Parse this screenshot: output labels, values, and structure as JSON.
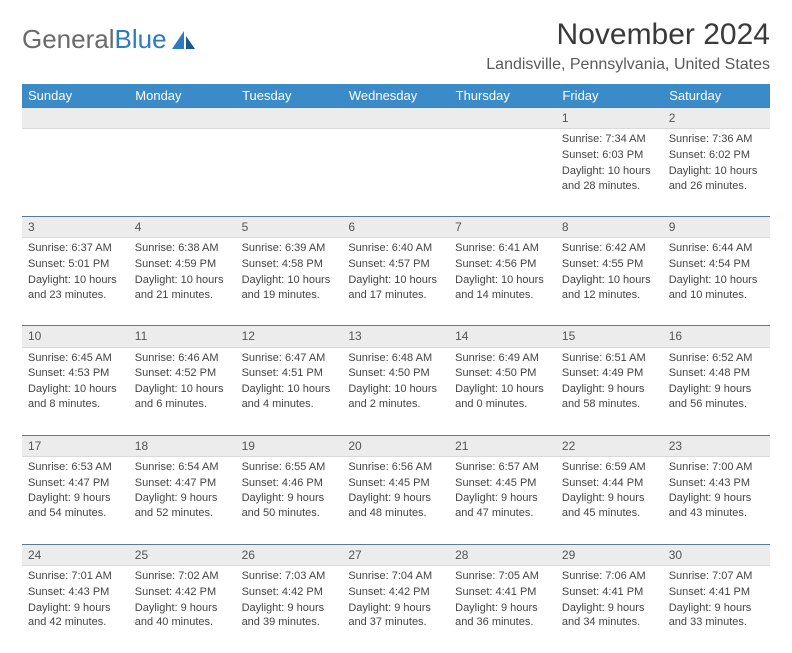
{
  "brand": {
    "part1": "General",
    "part2": "Blue"
  },
  "title": "November 2024",
  "location": "Landisville, Pennsylvania, United States",
  "colors": {
    "header_bg": "#3b8bc8",
    "header_text": "#ffffff",
    "daynum_bg": "#ececec",
    "text": "#444444",
    "rule": "#5a7a96"
  },
  "dayHeaders": [
    "Sunday",
    "Monday",
    "Tuesday",
    "Wednesday",
    "Thursday",
    "Friday",
    "Saturday"
  ],
  "weeks": [
    [
      null,
      null,
      null,
      null,
      null,
      {
        "n": "1",
        "sunrise": "Sunrise: 7:34 AM",
        "sunset": "Sunset: 6:03 PM",
        "daylight": "Daylight: 10 hours and 28 minutes."
      },
      {
        "n": "2",
        "sunrise": "Sunrise: 7:36 AM",
        "sunset": "Sunset: 6:02 PM",
        "daylight": "Daylight: 10 hours and 26 minutes."
      }
    ],
    [
      {
        "n": "3",
        "sunrise": "Sunrise: 6:37 AM",
        "sunset": "Sunset: 5:01 PM",
        "daylight": "Daylight: 10 hours and 23 minutes."
      },
      {
        "n": "4",
        "sunrise": "Sunrise: 6:38 AM",
        "sunset": "Sunset: 4:59 PM",
        "daylight": "Daylight: 10 hours and 21 minutes."
      },
      {
        "n": "5",
        "sunrise": "Sunrise: 6:39 AM",
        "sunset": "Sunset: 4:58 PM",
        "daylight": "Daylight: 10 hours and 19 minutes."
      },
      {
        "n": "6",
        "sunrise": "Sunrise: 6:40 AM",
        "sunset": "Sunset: 4:57 PM",
        "daylight": "Daylight: 10 hours and 17 minutes."
      },
      {
        "n": "7",
        "sunrise": "Sunrise: 6:41 AM",
        "sunset": "Sunset: 4:56 PM",
        "daylight": "Daylight: 10 hours and 14 minutes."
      },
      {
        "n": "8",
        "sunrise": "Sunrise: 6:42 AM",
        "sunset": "Sunset: 4:55 PM",
        "daylight": "Daylight: 10 hours and 12 minutes."
      },
      {
        "n": "9",
        "sunrise": "Sunrise: 6:44 AM",
        "sunset": "Sunset: 4:54 PM",
        "daylight": "Daylight: 10 hours and 10 minutes."
      }
    ],
    [
      {
        "n": "10",
        "sunrise": "Sunrise: 6:45 AM",
        "sunset": "Sunset: 4:53 PM",
        "daylight": "Daylight: 10 hours and 8 minutes."
      },
      {
        "n": "11",
        "sunrise": "Sunrise: 6:46 AM",
        "sunset": "Sunset: 4:52 PM",
        "daylight": "Daylight: 10 hours and 6 minutes."
      },
      {
        "n": "12",
        "sunrise": "Sunrise: 6:47 AM",
        "sunset": "Sunset: 4:51 PM",
        "daylight": "Daylight: 10 hours and 4 minutes."
      },
      {
        "n": "13",
        "sunrise": "Sunrise: 6:48 AM",
        "sunset": "Sunset: 4:50 PM",
        "daylight": "Daylight: 10 hours and 2 minutes."
      },
      {
        "n": "14",
        "sunrise": "Sunrise: 6:49 AM",
        "sunset": "Sunset: 4:50 PM",
        "daylight": "Daylight: 10 hours and 0 minutes."
      },
      {
        "n": "15",
        "sunrise": "Sunrise: 6:51 AM",
        "sunset": "Sunset: 4:49 PM",
        "daylight": "Daylight: 9 hours and 58 minutes."
      },
      {
        "n": "16",
        "sunrise": "Sunrise: 6:52 AM",
        "sunset": "Sunset: 4:48 PM",
        "daylight": "Daylight: 9 hours and 56 minutes."
      }
    ],
    [
      {
        "n": "17",
        "sunrise": "Sunrise: 6:53 AM",
        "sunset": "Sunset: 4:47 PM",
        "daylight": "Daylight: 9 hours and 54 minutes."
      },
      {
        "n": "18",
        "sunrise": "Sunrise: 6:54 AM",
        "sunset": "Sunset: 4:47 PM",
        "daylight": "Daylight: 9 hours and 52 minutes."
      },
      {
        "n": "19",
        "sunrise": "Sunrise: 6:55 AM",
        "sunset": "Sunset: 4:46 PM",
        "daylight": "Daylight: 9 hours and 50 minutes."
      },
      {
        "n": "20",
        "sunrise": "Sunrise: 6:56 AM",
        "sunset": "Sunset: 4:45 PM",
        "daylight": "Daylight: 9 hours and 48 minutes."
      },
      {
        "n": "21",
        "sunrise": "Sunrise: 6:57 AM",
        "sunset": "Sunset: 4:45 PM",
        "daylight": "Daylight: 9 hours and 47 minutes."
      },
      {
        "n": "22",
        "sunrise": "Sunrise: 6:59 AM",
        "sunset": "Sunset: 4:44 PM",
        "daylight": "Daylight: 9 hours and 45 minutes."
      },
      {
        "n": "23",
        "sunrise": "Sunrise: 7:00 AM",
        "sunset": "Sunset: 4:43 PM",
        "daylight": "Daylight: 9 hours and 43 minutes."
      }
    ],
    [
      {
        "n": "24",
        "sunrise": "Sunrise: 7:01 AM",
        "sunset": "Sunset: 4:43 PM",
        "daylight": "Daylight: 9 hours and 42 minutes."
      },
      {
        "n": "25",
        "sunrise": "Sunrise: 7:02 AM",
        "sunset": "Sunset: 4:42 PM",
        "daylight": "Daylight: 9 hours and 40 minutes."
      },
      {
        "n": "26",
        "sunrise": "Sunrise: 7:03 AM",
        "sunset": "Sunset: 4:42 PM",
        "daylight": "Daylight: 9 hours and 39 minutes."
      },
      {
        "n": "27",
        "sunrise": "Sunrise: 7:04 AM",
        "sunset": "Sunset: 4:42 PM",
        "daylight": "Daylight: 9 hours and 37 minutes."
      },
      {
        "n": "28",
        "sunrise": "Sunrise: 7:05 AM",
        "sunset": "Sunset: 4:41 PM",
        "daylight": "Daylight: 9 hours and 36 minutes."
      },
      {
        "n": "29",
        "sunrise": "Sunrise: 7:06 AM",
        "sunset": "Sunset: 4:41 PM",
        "daylight": "Daylight: 9 hours and 34 minutes."
      },
      {
        "n": "30",
        "sunrise": "Sunrise: 7:07 AM",
        "sunset": "Sunset: 4:41 PM",
        "daylight": "Daylight: 9 hours and 33 minutes."
      }
    ]
  ]
}
